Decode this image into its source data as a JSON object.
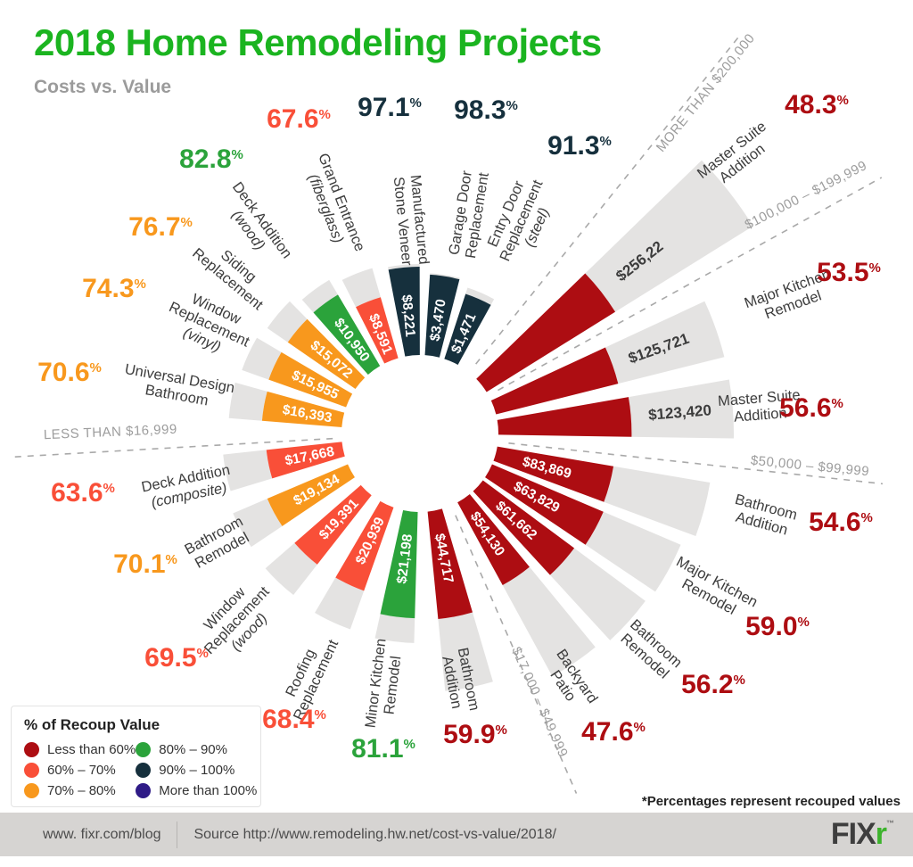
{
  "header": {
    "title": "2018 Home Remodeling Projects",
    "subtitle": "Costs vs. Value"
  },
  "colors": {
    "title_green": "#1bb420",
    "less60": "#ad0d12",
    "p60_70": "#f94f38",
    "p70_80": "#f8981d",
    "p80_90": "#2ba33b",
    "p90_100": "#16303d",
    "more100": "#2f1b87",
    "wedge_gray": "#e4e3e2",
    "name_label": "#3d3d3d",
    "ring_label": "#9d9d9d"
  },
  "chart_data": {
    "type": "radial-bar",
    "title": "2018 Home Remodeling Projects",
    "subtitle": "Costs vs. Value",
    "note": "*Percentages represent recouped values",
    "rings": [
      "MORE THAN $200,000",
      "$100,000 – $199,999",
      "$50,000 – $99,999",
      "$17,000 – $49,999",
      "LESS THAN $16,999"
    ],
    "percent_sign": "%",
    "projects": [
      {
        "name": "Manufactured Stone Veneer",
        "name_lines": [
          "Manufactured",
          "Stone Veneer"
        ],
        "cost": "$8,221",
        "recoup_pct": 97.1,
        "pct_label": "97.1",
        "bucket": "p90_100"
      },
      {
        "name": "Garage Door Replacement",
        "name_lines": [
          "Garage Door",
          "Replacement"
        ],
        "cost": "$3,470",
        "recoup_pct": 98.3,
        "pct_label": "98.3",
        "bucket": "p90_100"
      },
      {
        "name": "Entry Door Replacement (steel)",
        "name_lines": [
          "Entry Door",
          "Replacement",
          "(steel)"
        ],
        "cost": "$1,471",
        "recoup_pct": 91.3,
        "pct_label": "91.3",
        "bucket": "p90_100"
      },
      {
        "name": "Master Suite Addition",
        "name_lines": [
          "Master Suite",
          "Addition"
        ],
        "cost": "$256,22",
        "recoup_pct": 48.3,
        "pct_label": "48.3",
        "bucket": "less60"
      },
      {
        "name": "Major Kitchen Remodel",
        "name_lines": [
          "Major Kitchen",
          "Remodel"
        ],
        "cost": "$125,721",
        "recoup_pct": 53.5,
        "pct_label": "53.5",
        "bucket": "less60"
      },
      {
        "name": "Master Suite Addition",
        "name_lines": [
          "Master Suite",
          "Addition"
        ],
        "cost": "$123,420",
        "recoup_pct": 56.6,
        "pct_label": "56.6",
        "bucket": "less60"
      },
      {
        "name": "Bathroom Addition",
        "name_lines": [
          "Bathroom",
          "Addition"
        ],
        "cost": "$83,869",
        "recoup_pct": 54.6,
        "pct_label": "54.6",
        "bucket": "less60"
      },
      {
        "name": "Major Kitchen Remodel",
        "name_lines": [
          "Major Kitchen",
          "Remodel"
        ],
        "cost": "$63,829",
        "recoup_pct": 59.0,
        "pct_label": "59.0",
        "bucket": "less60"
      },
      {
        "name": "Bathroom Remodel",
        "name_lines": [
          "Bathroom",
          "Remodel"
        ],
        "cost": "$61,662",
        "recoup_pct": 56.2,
        "pct_label": "56.2",
        "bucket": "less60"
      },
      {
        "name": "Backyard Patio",
        "name_lines": [
          "Backyard",
          "Patio"
        ],
        "cost": "$54,130",
        "recoup_pct": 47.6,
        "pct_label": "47.6",
        "bucket": "less60"
      },
      {
        "name": "Bathroom Addition",
        "name_lines": [
          "Bathroom",
          "Addition"
        ],
        "cost": "$44,717",
        "recoup_pct": 59.9,
        "pct_label": "59.9",
        "bucket": "less60"
      },
      {
        "name": "Minor Kitchen Remodel",
        "name_lines": [
          "Minor Kitchen",
          "Remodel"
        ],
        "cost": "$21,198",
        "recoup_pct": 81.1,
        "pct_label": "81.1",
        "bucket": "p80_90"
      },
      {
        "name": "Roofing Replacement",
        "name_lines": [
          "Roofing",
          "Replacement"
        ],
        "cost": "$20,939",
        "recoup_pct": 68.4,
        "pct_label": "68.4",
        "bucket": "p60_70"
      },
      {
        "name": "Window Replacement (wood)",
        "name_lines": [
          "Window",
          "Replacement",
          "(wood)"
        ],
        "cost": "$19,391",
        "recoup_pct": 69.5,
        "pct_label": "69.5",
        "bucket": "p60_70"
      },
      {
        "name": "Bathroom Remodel",
        "name_lines": [
          "Bathroom",
          "Remodel"
        ],
        "cost": "$19,134",
        "recoup_pct": 70.1,
        "pct_label": "70.1",
        "bucket": "p70_80"
      },
      {
        "name": "Deck Addition (composite)",
        "name_lines": [
          "Deck Addition",
          "(composite)"
        ],
        "cost": "$17,668",
        "recoup_pct": 63.6,
        "pct_label": "63.6",
        "bucket": "p60_70"
      },
      {
        "name": "Universal Design Bathroom",
        "name_lines": [
          "Universal Design",
          "Bathroom"
        ],
        "cost": "$16,393",
        "recoup_pct": 70.6,
        "pct_label": "70.6",
        "bucket": "p70_80"
      },
      {
        "name": "Window Replacement (vinyl)",
        "name_lines": [
          "Window",
          "Replacement",
          "(vinyl)"
        ],
        "cost": "$15,955",
        "recoup_pct": 74.3,
        "pct_label": "74.3",
        "bucket": "p70_80"
      },
      {
        "name": "Siding Replacement",
        "name_lines": [
          "Siding",
          "Replacement"
        ],
        "cost": "$15,072",
        "recoup_pct": 76.7,
        "pct_label": "76.7",
        "bucket": "p70_80"
      },
      {
        "name": "Deck Addition (wood)",
        "name_lines": [
          "Deck Addition",
          "(wood)"
        ],
        "cost": "$10,950",
        "recoup_pct": 82.8,
        "pct_label": "82.8",
        "bucket": "p80_90"
      },
      {
        "name": "Grand Entrance (fiberglass)",
        "name_lines": [
          "Grand Entrance",
          "(fiberglass)"
        ],
        "cost": "$8,591",
        "recoup_pct": 67.6,
        "pct_label": "67.6",
        "bucket": "p60_70"
      }
    ]
  },
  "legend": {
    "title": "% of Recoup Value",
    "items": [
      {
        "label": "Less than 60%",
        "bucket": "less60"
      },
      {
        "label": "60% – 70%",
        "bucket": "p60_70"
      },
      {
        "label": "70% – 80%",
        "bucket": "p70_80"
      },
      {
        "label": "80% – 90%",
        "bucket": "p80_90"
      },
      {
        "label": "90% – 100%",
        "bucket": "p90_100"
      },
      {
        "label": "More than 100%",
        "bucket": "more100"
      }
    ]
  },
  "footer": {
    "blog": "www. fixr.com/blog",
    "source": "Source http://www.remodeling.hw.net/cost-vs-value/2018/",
    "logo_fix": "FIX",
    "logo_r": "r",
    "trademark": "™"
  }
}
